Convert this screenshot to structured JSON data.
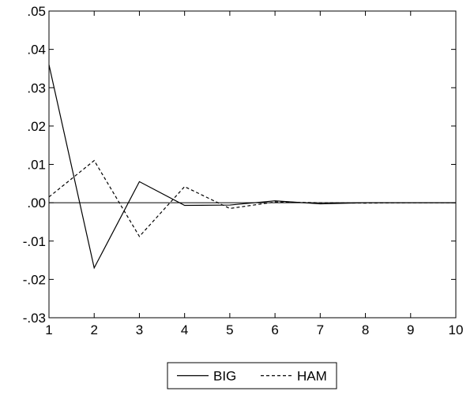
{
  "chart_data": {
    "type": "line",
    "title": "",
    "xlabel": "",
    "ylabel": "",
    "x": [
      1,
      2,
      3,
      4,
      5,
      6,
      7,
      8,
      9,
      10
    ],
    "xlim": [
      1,
      10
    ],
    "ylim": [
      -0.03,
      0.05
    ],
    "x_ticks": [
      1,
      2,
      3,
      4,
      5,
      6,
      7,
      8,
      9,
      10
    ],
    "x_tick_labels": [
      "1",
      "2",
      "3",
      "4",
      "5",
      "6",
      "7",
      "8",
      "9",
      "10"
    ],
    "y_ticks": [
      0.05,
      0.04,
      0.03,
      0.02,
      0.01,
      0.0,
      -0.01,
      -0.02,
      -0.03
    ],
    "y_tick_labels": [
      ".05",
      ".04",
      ".03",
      ".02",
      ".01",
      ".00",
      "-.01",
      "-.02",
      "-.03"
    ],
    "zero_line": true,
    "grid": false,
    "legend_position": "bottom-center",
    "series": [
      {
        "name": "BIG",
        "style": "solid",
        "color": "#000000",
        "values": [
          0.036,
          -0.017,
          0.0055,
          -0.0007,
          -0.0006,
          0.0005,
          -0.0003,
          0.0,
          0.0,
          0.0
        ]
      },
      {
        "name": "HAM",
        "style": "dashed",
        "color": "#000000",
        "values": [
          0.0015,
          0.011,
          -0.0088,
          0.0042,
          -0.0015,
          0.0002,
          0.0,
          -0.0001,
          0.0,
          0.0
        ]
      }
    ]
  }
}
